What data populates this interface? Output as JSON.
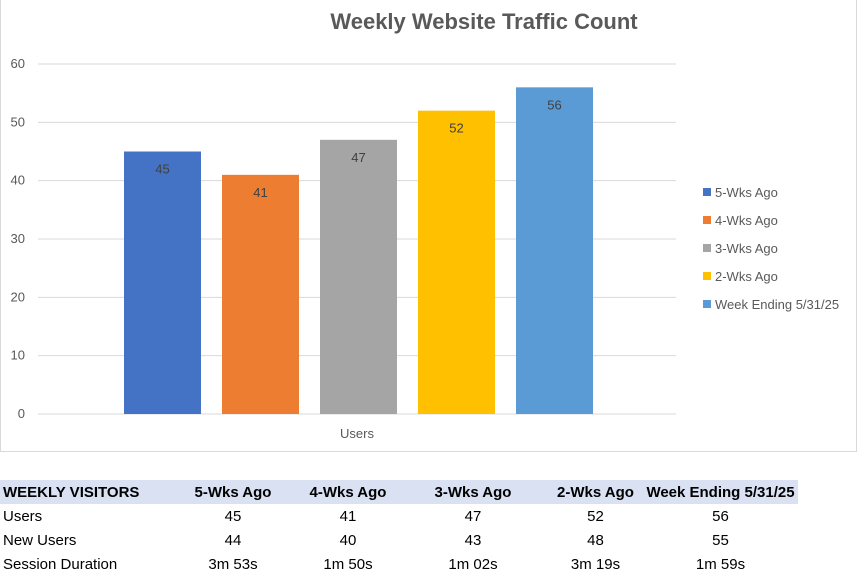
{
  "chart_data": {
    "type": "bar",
    "title": "Weekly Website Traffic Count",
    "categories": [
      "Users"
    ],
    "xlabel": "Users",
    "ylim": [
      0,
      60
    ],
    "yticks": [
      0,
      10,
      20,
      30,
      40,
      50,
      60
    ],
    "grid": true,
    "legend_position": "right",
    "series": [
      {
        "name": "5-Wks Ago",
        "values": [
          45
        ],
        "color": "#4472C4"
      },
      {
        "name": "4-Wks Ago",
        "values": [
          41
        ],
        "color": "#ED7D31"
      },
      {
        "name": "3-Wks Ago",
        "values": [
          47
        ],
        "color": "#A5A5A5"
      },
      {
        "name": "2-Wks Ago",
        "values": [
          52
        ],
        "color": "#FFC000"
      },
      {
        "name": "Week Ending 5/31/25",
        "values": [
          56
        ],
        "color": "#5B9BD5"
      }
    ]
  },
  "table": {
    "title": "WEEKLY VISITORS",
    "columns": [
      "5-Wks Ago",
      "4-Wks Ago",
      "3-Wks Ago",
      "2-Wks Ago",
      "Week Ending 5/31/25"
    ],
    "rows": [
      {
        "label": "Users",
        "values": [
          "45",
          "41",
          "47",
          "52",
          "56"
        ]
      },
      {
        "label": "New Users",
        "values": [
          "44",
          "40",
          "43",
          "48",
          "55"
        ]
      },
      {
        "label": "Session Duration",
        "values": [
          "3m 53s",
          "1m 50s",
          "1m 02s",
          "3m 19s",
          "1m 59s"
        ]
      }
    ],
    "header_bg": "#D9E1F2"
  }
}
